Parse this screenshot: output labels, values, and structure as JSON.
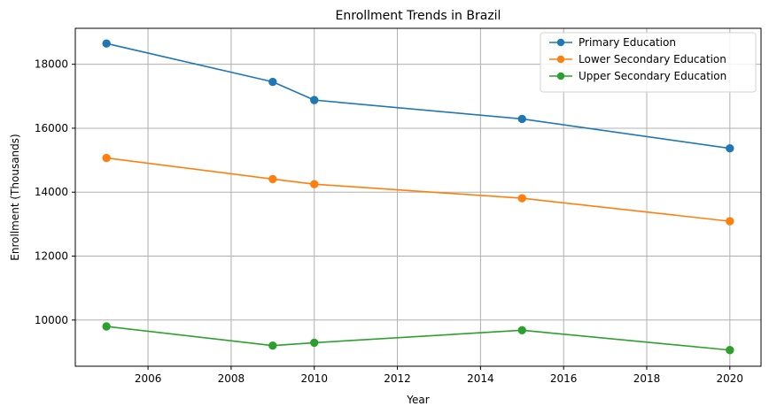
{
  "chart_data": {
    "type": "line",
    "title": "Enrollment Trends in Brazil",
    "xlabel": "Year",
    "ylabel": "Enrollment (Thousands)",
    "x": [
      2005,
      2009,
      2010,
      2015,
      2020
    ],
    "xlim": [
      2004.25,
      2020.75
    ],
    "ylim": [
      8555,
      19125
    ],
    "xticks": [
      2006,
      2008,
      2010,
      2012,
      2014,
      2016,
      2018,
      2020
    ],
    "yticks": [
      10000,
      12000,
      14000,
      16000,
      18000
    ],
    "grid": true,
    "legend_position": "top-right",
    "series": [
      {
        "name": "Primary Education",
        "color": "#1f77b4",
        "values": [
          18650,
          17450,
          16880,
          16290,
          15370
        ]
      },
      {
        "name": "Lower Secondary Education",
        "color": "#ff7f0e",
        "values": [
          15070,
          14410,
          14250,
          13810,
          13090
        ]
      },
      {
        "name": "Upper Secondary Education",
        "color": "#2ca02c",
        "values": [
          9800,
          9200,
          9290,
          9680,
          9060
        ]
      }
    ]
  }
}
